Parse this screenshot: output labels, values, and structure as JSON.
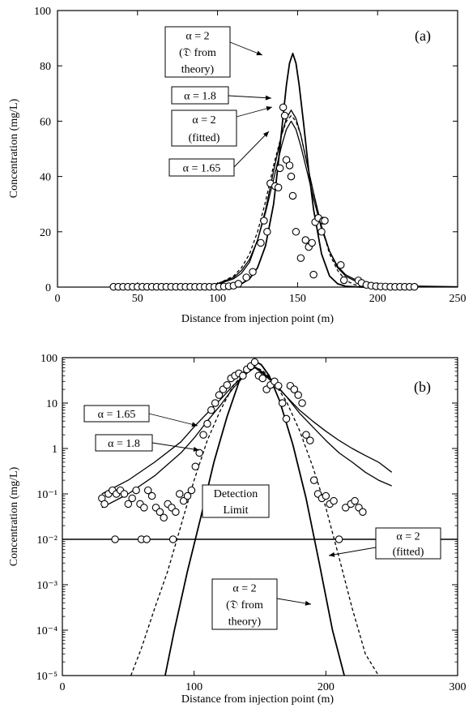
{
  "chart_data": [
    {
      "type": "line",
      "panel_label": "(a)",
      "xlabel": "Distance from injection point (m)",
      "ylabel": "Concentration (mg/L)",
      "xlim": [
        0,
        250
      ],
      "ylim": [
        0,
        100
      ],
      "yscale": "linear",
      "xticks": [
        0,
        50,
        100,
        150,
        200,
        250
      ],
      "yticks": [
        0,
        20,
        40,
        60,
        80,
        100
      ],
      "xtick_labels": [
        "0",
        "50",
        "100",
        "150",
        "200",
        "250"
      ],
      "ytick_labels": [
        "0",
        "20",
        "40",
        "60",
        "80",
        "100"
      ],
      "grid": false,
      "series": [
        {
          "key": "a2theory",
          "style": "solid",
          "x": [
            60,
            80,
            100,
            110,
            115,
            120,
            125,
            130,
            135,
            138,
            141,
            143,
            145,
            147,
            149,
            151,
            154,
            157,
            160,
            165,
            170,
            175,
            180,
            190,
            200,
            220
          ],
          "y": [
            0,
            0,
            0.1,
            0.4,
            1.2,
            3,
            7,
            15,
            30,
            45,
            62,
            73,
            81,
            84.5,
            81,
            73,
            58,
            42,
            28,
            12,
            4,
            1.2,
            0.3,
            0,
            0,
            0
          ]
        },
        {
          "key": "a18",
          "style": "solid",
          "x": [
            40,
            60,
            80,
            90,
            100,
            110,
            115,
            120,
            125,
            130,
            135,
            140,
            143,
            146,
            149,
            152,
            155,
            160,
            165,
            170,
            175,
            180,
            185,
            190,
            200,
            220,
            250
          ],
          "y": [
            0.02,
            0.05,
            0.2,
            0.4,
            1,
            3,
            5,
            9,
            17,
            28,
            42,
            55,
            61,
            64,
            61,
            55,
            47,
            34,
            22,
            13,
            7,
            4,
            2.5,
            1.5,
            0.6,
            0.2,
            0.08
          ]
        },
        {
          "key": "a2fitted",
          "style": "dashed",
          "x": [
            40,
            60,
            80,
            90,
            100,
            110,
            115,
            120,
            125,
            130,
            135,
            140,
            143,
            146,
            149,
            152,
            155,
            160,
            165,
            170,
            175,
            180,
            185,
            190,
            200,
            220
          ],
          "y": [
            0,
            0,
            0.1,
            0.4,
            1.1,
            4,
            7,
            12,
            20,
            31,
            44,
            55,
            60,
            62,
            60,
            55,
            47,
            34,
            22,
            12,
            6,
            2.5,
            1,
            0.3,
            0,
            0
          ]
        },
        {
          "key": "a165",
          "style": "solid",
          "x": [
            40,
            60,
            80,
            90,
            100,
            110,
            115,
            120,
            125,
            130,
            135,
            140,
            143,
            146,
            149,
            152,
            155,
            160,
            165,
            170,
            175,
            180,
            185,
            190,
            200,
            220,
            250
          ],
          "y": [
            0.05,
            0.1,
            0.3,
            0.6,
            1.3,
            3.5,
            6,
            10,
            17,
            27,
            39,
            51,
            57,
            60,
            57,
            51,
            44,
            32,
            21,
            13,
            7.5,
            4.5,
            3,
            2,
            1,
            0.4,
            0.15
          ]
        }
      ],
      "observed": {
        "x": [
          35,
          38,
          41,
          44,
          47,
          50,
          53,
          56,
          59,
          62,
          65,
          68,
          71,
          74,
          77,
          80,
          83,
          86,
          89,
          92,
          95,
          98,
          101,
          104,
          107,
          110,
          113,
          118,
          122,
          127,
          129,
          131,
          133,
          136,
          138,
          139,
          141,
          142,
          143,
          145,
          146,
          147,
          149,
          152,
          155,
          157,
          159,
          160,
          161,
          163,
          165,
          166,
          167,
          177,
          179,
          188,
          190,
          193,
          196,
          199,
          202,
          205,
          208,
          211,
          214,
          217,
          220,
          223
        ],
        "y": [
          0.1,
          0.1,
          0.1,
          0.1,
          0.1,
          0.1,
          0.1,
          0.1,
          0.1,
          0.1,
          0.1,
          0.1,
          0.1,
          0.1,
          0.1,
          0.1,
          0.1,
          0.1,
          0.1,
          0.1,
          0.1,
          0.1,
          0.1,
          0.2,
          0.3,
          0.5,
          1.2,
          3.5,
          5.5,
          16,
          24,
          20,
          37.5,
          36.5,
          36,
          43,
          65,
          62,
          46,
          44,
          40,
          33,
          20,
          10.5,
          17,
          14.5,
          16,
          4.5,
          23.5,
          25,
          20,
          24,
          24,
          8,
          2.5,
          2.4,
          1.5,
          0.8,
          0.5,
          0.3,
          0.2,
          0.2,
          0.1,
          0.1,
          0.1,
          0.1,
          0.1,
          0.1
        ]
      },
      "annotations": [
        {
          "key": "a2theory",
          "lines": [
            "α = 2",
            "(𝔇 from",
            "theory)"
          ]
        },
        {
          "key": "a18",
          "lines": [
            "α = 1.8"
          ]
        },
        {
          "key": "a2fitted",
          "lines": [
            "α = 2",
            "(fitted)"
          ]
        },
        {
          "key": "a165",
          "lines": [
            "α = 1.65"
          ]
        }
      ]
    },
    {
      "type": "line",
      "panel_label": "(b)",
      "xlabel": "Distance from injection point (m)",
      "ylabel": "Concentration (mg/L)",
      "xlim": [
        0,
        300
      ],
      "ylim": [
        1e-05,
        100
      ],
      "yscale": "log",
      "xticks": [
        0,
        100,
        200,
        300
      ],
      "xtick_labels": [
        "0",
        "100",
        "200",
        "300"
      ],
      "ytick_labels": [
        "10⁻⁵",
        "10⁻⁴",
        "10⁻³",
        "10⁻²",
        "10⁻¹",
        "1",
        "10",
        "100"
      ],
      "grid": false,
      "detection_limit": 0.01,
      "series": [
        {
          "key": "a165",
          "style": "solid",
          "x": [
            30,
            50,
            70,
            90,
            100,
            110,
            120,
            130,
            140,
            146,
            152,
            160,
            170,
            180,
            190,
            200,
            210,
            220,
            230,
            240,
            250
          ],
          "y": [
            0.1,
            0.2,
            0.5,
            1.4,
            3,
            6,
            12,
            25,
            45,
            60,
            45,
            28,
            14,
            7,
            4,
            2.4,
            1.5,
            1,
            0.7,
            0.5,
            0.3
          ]
        },
        {
          "key": "a18",
          "style": "solid",
          "x": [
            30,
            50,
            70,
            90,
            100,
            110,
            120,
            130,
            140,
            146,
            152,
            160,
            170,
            180,
            190,
            200,
            210,
            220,
            230,
            240,
            250
          ],
          "y": [
            0.05,
            0.1,
            0.25,
            0.8,
            1.7,
            4,
            9,
            22,
            45,
            64,
            48,
            30,
            14,
            6,
            3,
            1.5,
            0.8,
            0.5,
            0.3,
            0.2,
            0.15
          ]
        },
        {
          "key": "a2fitted",
          "style": "dashed",
          "x": [
            52,
            60,
            70,
            80,
            90,
            100,
            110,
            120,
            130,
            140,
            146,
            152,
            160,
            170,
            180,
            190,
            200,
            210,
            220,
            230,
            240
          ],
          "y": [
            1e-05,
            4e-05,
            0.0003,
            0.002,
            0.02,
            0.2,
            1.5,
            7,
            25,
            52,
            62,
            52,
            30,
            11,
            2.5,
            0.4,
            0.05,
            0.004,
            0.0003,
            3e-05,
            1e-05
          ]
        },
        {
          "key": "a2theory",
          "style": "solid",
          "x": [
            78,
            85,
            95,
            105,
            115,
            125,
            135,
            141,
            146,
            151,
            157,
            165,
            175,
            185,
            195,
            205,
            214
          ],
          "y": [
            1e-05,
            0.0001,
            0.002,
            0.03,
            0.5,
            5,
            35,
            70,
            84.5,
            70,
            40,
            11,
            1.2,
            0.08,
            0.003,
            0.0001,
            1e-05
          ]
        }
      ],
      "observed": {
        "x": [
          30,
          32,
          35,
          38,
          41,
          44,
          47,
          50,
          53,
          56,
          59,
          62,
          65,
          68,
          71,
          74,
          77,
          80,
          83,
          86,
          89,
          92,
          95,
          98,
          101,
          104,
          107,
          110,
          113,
          116,
          119,
          122,
          125,
          128,
          131,
          134,
          137,
          140,
          143,
          146,
          149,
          152,
          155,
          158,
          161,
          164,
          167,
          170,
          173,
          176,
          179,
          182,
          185,
          188,
          191,
          194,
          197,
          200,
          203,
          206,
          215,
          219,
          222,
          225,
          228,
          40,
          60,
          64,
          84,
          210
        ],
        "y": [
          0.08,
          0.06,
          0.1,
          0.12,
          0.1,
          0.12,
          0.1,
          0.06,
          0.08,
          0.12,
          0.06,
          0.05,
          0.12,
          0.09,
          0.05,
          0.04,
          0.03,
          0.06,
          0.05,
          0.04,
          0.1,
          0.07,
          0.09,
          0.12,
          0.4,
          0.8,
          2,
          3.5,
          7,
          10,
          15,
          20,
          25,
          35,
          40,
          45,
          40,
          55,
          65,
          80,
          40,
          35,
          20,
          25,
          30,
          24,
          10,
          4.5,
          24,
          20,
          15,
          10,
          2,
          1.5,
          0.2,
          0.1,
          0.08,
          0.09,
          0.06,
          0.07,
          0.05,
          0.06,
          0.07,
          0.05,
          0.04,
          0.01,
          0.01,
          0.01,
          0.01,
          0.01
        ]
      },
      "annotations": [
        {
          "key": "a165",
          "lines": [
            "α = 1.65"
          ]
        },
        {
          "key": "a18",
          "lines": [
            "α = 1.8"
          ]
        },
        {
          "key": "detection",
          "lines": [
            "Detection",
            "Limit"
          ]
        },
        {
          "key": "a2fitted",
          "lines": [
            "α = 2",
            "(fitted)"
          ]
        },
        {
          "key": "a2theory",
          "lines": [
            "α = 2",
            "(𝔇 from",
            "theory)"
          ]
        }
      ]
    }
  ]
}
